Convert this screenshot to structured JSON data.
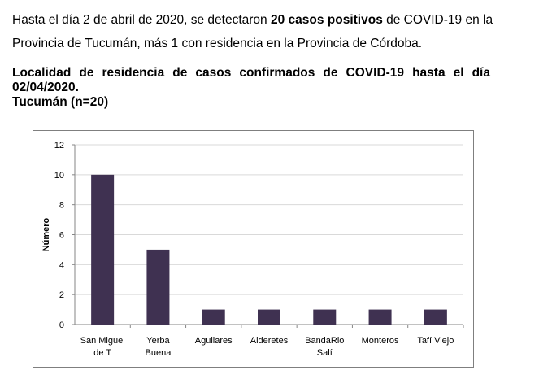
{
  "intro": {
    "part1": "Hasta el día 2 de abril de 2020, se detectaron ",
    "bold": "20 casos positivos",
    "part2": " de COVID-19 en la Provincia de Tucumán, más 1 con residencia en la Provincia de Córdoba."
  },
  "heading": {
    "line1": "Localidad de residencia de casos confirmados de COVID-19 hasta el día",
    "line2": "02/04/2020.",
    "line3": "Tucumán (n=20)"
  },
  "chart_data": {
    "type": "bar",
    "categories": [
      [
        "San Miguel",
        "de T"
      ],
      [
        "Yerba",
        "Buena"
      ],
      [
        "Aguilares"
      ],
      [
        "Alderetes"
      ],
      [
        "BandaRio",
        "Salí"
      ],
      [
        "Monteros"
      ],
      [
        "Tafí Viejo"
      ]
    ],
    "values": [
      10,
      5,
      1,
      1,
      1,
      1,
      1
    ],
    "ylabel": "Número",
    "xlabel": "",
    "ylim": [
      0,
      12
    ],
    "yticks": [
      0,
      2,
      4,
      6,
      8,
      10,
      12
    ],
    "grid": true,
    "bar_color": "#3f3151",
    "grid_color": "#d9d9d9"
  }
}
